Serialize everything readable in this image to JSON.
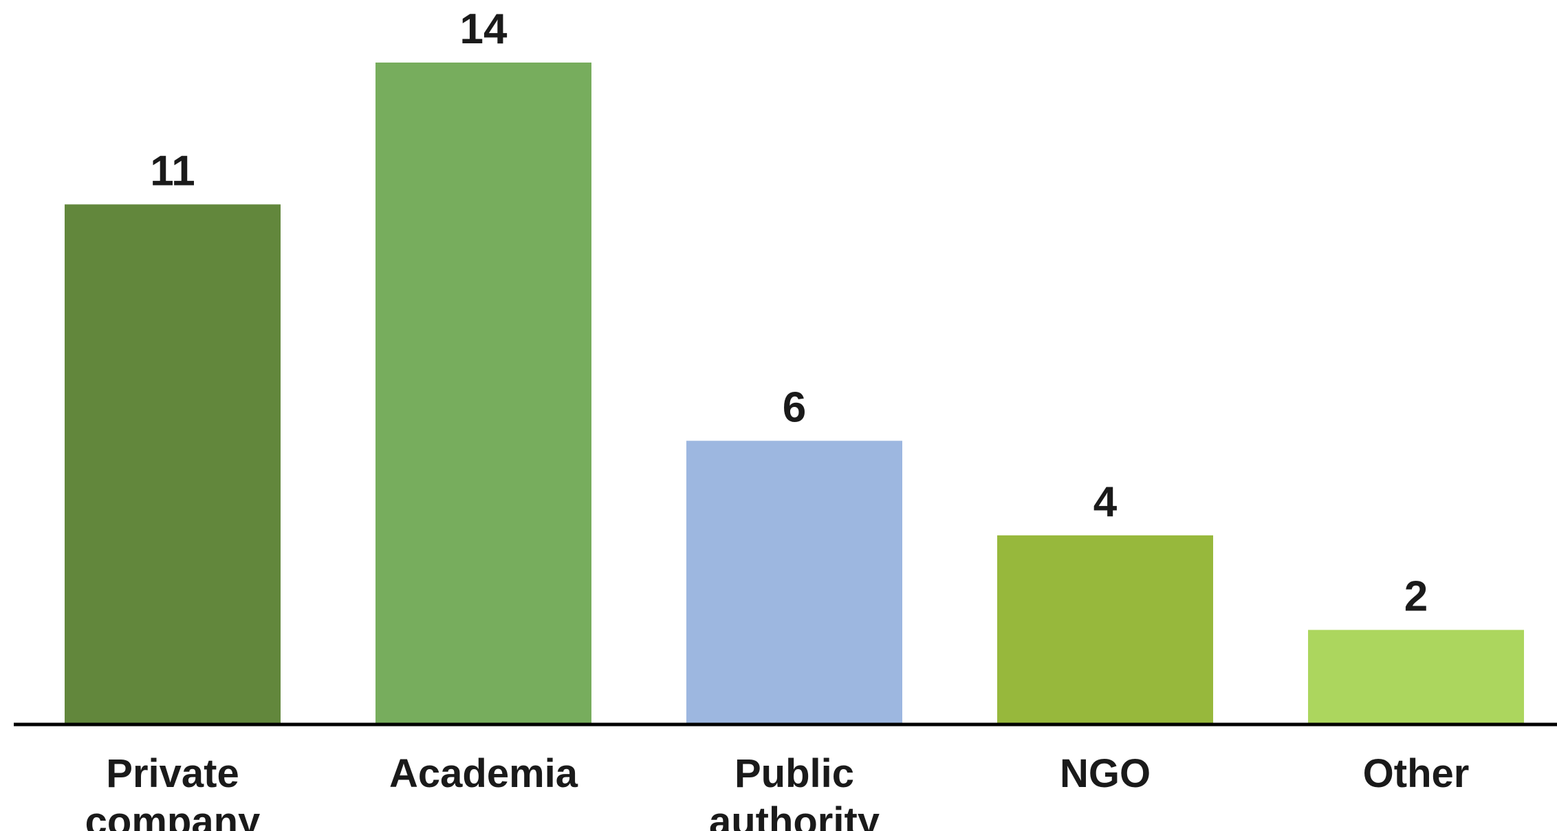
{
  "chart_data": {
    "type": "bar",
    "title": "",
    "xlabel": "",
    "ylabel": "",
    "categories": [
      "Private company",
      "Academia",
      "Public authority",
      "NGO",
      "Other"
    ],
    "category_lines": [
      [
        "Private",
        "company"
      ],
      [
        "Academia"
      ],
      [
        "Public",
        "authority"
      ],
      [
        "NGO"
      ],
      [
        "Other"
      ]
    ],
    "values": [
      11,
      14,
      6,
      4,
      2
    ],
    "value_labels": [
      "11",
      "14",
      "6",
      "4",
      "2"
    ],
    "ylim": [
      0,
      14
    ],
    "grid": false,
    "legend": "none",
    "colors": [
      "#62873c",
      "#77ad5d",
      "#9db7e0",
      "#97b83c",
      "#acd65e"
    ]
  }
}
